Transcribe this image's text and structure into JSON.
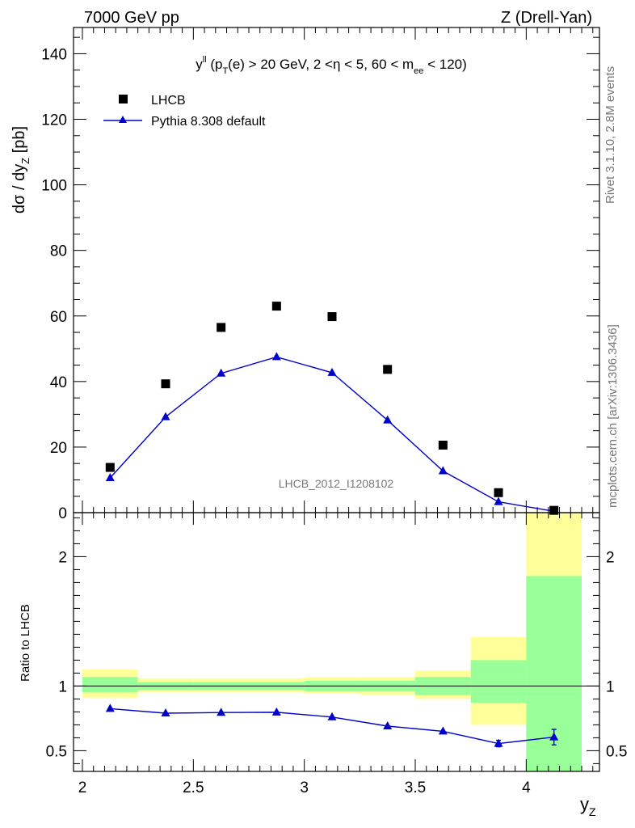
{
  "header": {
    "left": "7000 GeV pp",
    "right": "Z (Drell-Yan)"
  },
  "side": {
    "rivet": "Rivet 3.1.10,  2.8M events",
    "mcplots": "mcplots.cern.ch [arXiv:1306.3436]"
  },
  "plot": {
    "title_main": "y",
    "title_sup": "ll",
    "title_p1": " (p",
    "title_sub1": "T",
    "title_p2": "(e) > 20 GeV, 2 <η < 5, 60 < m",
    "title_sub2": "ee",
    "title_p3": " < 120)",
    "watermark": "LHCB_2012_I1208102",
    "ylabel_top_1": "dσ / dy",
    "ylabel_top_sub": "Z",
    "ylabel_top_2": " [pb]",
    "ylabel_bottom": "Ratio to LHCB",
    "xlabel": "y",
    "xlabel_sub": "Z"
  },
  "legend": {
    "data_label": "LHCB",
    "mc_label": "Pythia 8.308 default"
  },
  "colors": {
    "mc": "#0000cc",
    "band_inner": "#99ff99",
    "band_outer": "#ffff99"
  },
  "chart_data": {
    "type": "scatter",
    "x_edges": [
      2.0,
      2.25,
      2.5,
      2.75,
      3.0,
      3.25,
      3.5,
      3.75,
      4.0,
      4.25
    ],
    "x": [
      2.125,
      2.375,
      2.625,
      2.875,
      3.125,
      3.375,
      3.625,
      3.875,
      4.125
    ],
    "xlim": [
      1.96,
      4.33
    ],
    "ylim_main": [
      0,
      148
    ],
    "ylim_ratio": [
      0.34,
      2.34
    ],
    "x_ticks": [
      2,
      2.5,
      3,
      3.5,
      4
    ],
    "x_tick_labels": [
      "2",
      "2.5",
      "3",
      "3.5",
      "4"
    ],
    "y_ticks_main": [
      0,
      20,
      40,
      60,
      80,
      100,
      120,
      140
    ],
    "y_tick_labels_main": [
      "0",
      "20",
      "40",
      "60",
      "80",
      "100",
      "120",
      "140"
    ],
    "y_ticks_ratio": [
      0.5,
      1,
      2
    ],
    "y_tick_labels_ratio": [
      "0.5",
      "1",
      "2"
    ],
    "series": [
      {
        "name": "LHCB",
        "values": [
          13.8,
          39.3,
          56.5,
          63.0,
          59.8,
          43.7,
          20.6,
          6.1,
          0.7
        ]
      },
      {
        "name": "Pythia 8.308 default",
        "values": [
          10.6,
          29.2,
          42.5,
          47.5,
          42.7,
          28.2,
          12.7,
          3.3,
          0.43
        ]
      }
    ],
    "ratio_values": [
      0.825,
      0.79,
      0.795,
      0.797,
      0.76,
      0.69,
      0.65,
      0.555,
      0.605
    ],
    "ratio_error": [
      0,
      0,
      0,
      0,
      0,
      0,
      0,
      0.025,
      0.06
    ],
    "band_inner": [
      [
        0.95,
        1.07
      ],
      [
        0.97,
        1.03
      ],
      [
        0.97,
        1.03
      ],
      [
        0.97,
        1.03
      ],
      [
        0.96,
        1.04
      ],
      [
        0.96,
        1.04
      ],
      [
        0.93,
        1.07
      ],
      [
        0.87,
        1.2
      ],
      [
        0.34,
        1.85
      ]
    ],
    "band_outer": [
      [
        0.91,
        1.13
      ],
      [
        0.95,
        1.06
      ],
      [
        0.95,
        1.06
      ],
      [
        0.95,
        1.06
      ],
      [
        0.94,
        1.07
      ],
      [
        0.93,
        1.07
      ],
      [
        0.9,
        1.12
      ],
      [
        0.7,
        1.38
      ],
      [
        0.34,
        2.34
      ]
    ]
  }
}
